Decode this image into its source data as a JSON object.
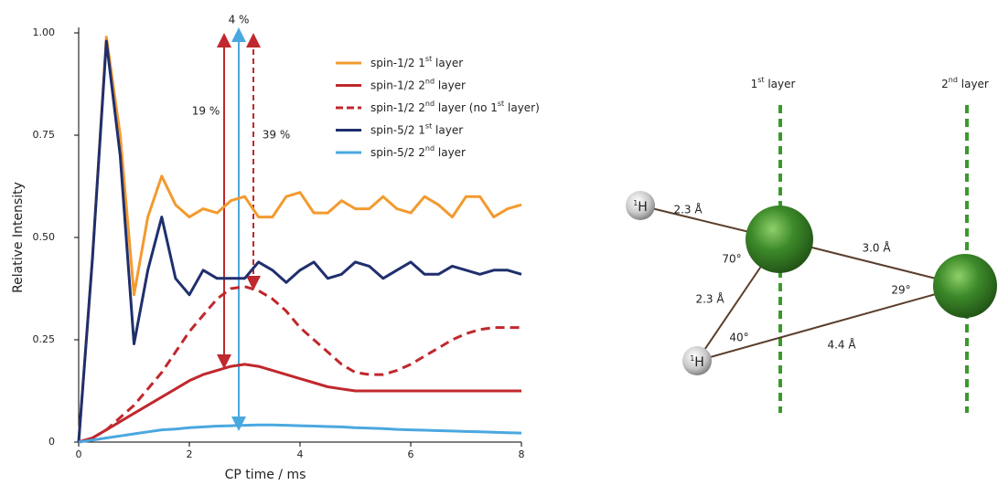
{
  "chart_data": {
    "type": "line",
    "xlabel": "CP time / ms",
    "ylabel": "Relative Intensity",
    "xlim": [
      0,
      8
    ],
    "ylim": [
      0,
      1.0
    ],
    "xticks": [
      0,
      2,
      4,
      6,
      8
    ],
    "yticks": [
      0,
      {
        "value": 0.25,
        "label": "0.25"
      },
      {
        "value": 0.5,
        "label": "0.50"
      },
      {
        "value": 0.75,
        "label": "0.75"
      },
      {
        "value": 1.0,
        "label": "1.00"
      }
    ],
    "grid": false,
    "x": [
      0,
      0.25,
      0.5,
      0.75,
      1.0,
      1.25,
      1.5,
      1.75,
      2.0,
      2.25,
      2.5,
      2.75,
      3.0,
      3.25,
      3.5,
      3.75,
      4.0,
      4.25,
      4.5,
      4.75,
      5.0,
      5.25,
      5.5,
      5.75,
      6.0,
      6.25,
      6.5,
      6.75,
      7.0,
      7.25,
      7.5,
      7.75,
      8.0
    ],
    "series": [
      {
        "name": "spin-1/2 1st layer",
        "color": "#f39a2e",
        "line_style": "solid",
        "values": [
          0,
          0.45,
          0.99,
          0.75,
          0.36,
          0.55,
          0.65,
          0.58,
          0.55,
          0.57,
          0.56,
          0.59,
          0.6,
          0.55,
          0.55,
          0.6,
          0.61,
          0.56,
          0.56,
          0.59,
          0.57,
          0.57,
          0.6,
          0.57,
          0.56,
          0.6,
          0.58,
          0.55,
          0.6,
          0.6,
          0.55,
          0.57,
          0.58
        ]
      },
      {
        "name": "spin-1/2 2nd layer",
        "color": "#c0282d",
        "line_style": "solid",
        "values": [
          0,
          0.01,
          0.03,
          0.05,
          0.07,
          0.09,
          0.11,
          0.13,
          0.15,
          0.165,
          0.175,
          0.185,
          0.19,
          0.185,
          0.175,
          0.165,
          0.155,
          0.145,
          0.135,
          0.13,
          0.125,
          0.125,
          0.125,
          0.125,
          0.125,
          0.125,
          0.125,
          0.125,
          0.125,
          0.125,
          0.125,
          0.125,
          0.125
        ]
      },
      {
        "name": "spin-1/2 2nd layer (no 1st layer)",
        "color": "#c0282d",
        "line_style": "dashed",
        "values": [
          0,
          0.01,
          0.03,
          0.06,
          0.09,
          0.13,
          0.17,
          0.22,
          0.27,
          0.31,
          0.35,
          0.375,
          0.38,
          0.37,
          0.35,
          0.32,
          0.28,
          0.25,
          0.22,
          0.19,
          0.17,
          0.165,
          0.165,
          0.175,
          0.19,
          0.21,
          0.23,
          0.25,
          0.265,
          0.275,
          0.28,
          0.28,
          0.28
        ]
      },
      {
        "name": "spin-5/2 1st layer",
        "color": "#1f2f6e",
        "line_style": "solid",
        "values": [
          0,
          0.45,
          0.98,
          0.7,
          0.24,
          0.42,
          0.55,
          0.4,
          0.36,
          0.42,
          0.4,
          0.4,
          0.4,
          0.44,
          0.42,
          0.39,
          0.42,
          0.44,
          0.4,
          0.41,
          0.44,
          0.43,
          0.4,
          0.42,
          0.44,
          0.41,
          0.41,
          0.43,
          0.42,
          0.41,
          0.42,
          0.42,
          0.41
        ]
      },
      {
        "name": "spin-5/2 2nd layer",
        "color": "#4aa8e0",
        "line_style": "solid",
        "values": [
          0,
          0.005,
          0.01,
          0.015,
          0.02,
          0.025,
          0.03,
          0.032,
          0.035,
          0.037,
          0.039,
          0.04,
          0.041,
          0.042,
          0.042,
          0.041,
          0.04,
          0.039,
          0.038,
          0.037,
          0.035,
          0.034,
          0.033,
          0.031,
          0.03,
          0.029,
          0.028,
          0.027,
          0.026,
          0.025,
          0.024,
          0.023,
          0.022
        ]
      }
    ],
    "annotations": [
      {
        "text": "19 %",
        "color": "#c0282d"
      },
      {
        "text": "4 %",
        "color": "#4aa8e0"
      },
      {
        "text": "39 %",
        "color": "#c0282d"
      }
    ]
  },
  "diagram": {
    "layers": [
      "1st layer",
      "2nd layer"
    ],
    "atoms": [
      "1H",
      "1H"
    ],
    "labels": [
      "2.3 Å",
      "70°",
      "2.3 Å",
      "40°",
      "3.0 Å",
      "29°",
      "4.4 Å"
    ]
  }
}
